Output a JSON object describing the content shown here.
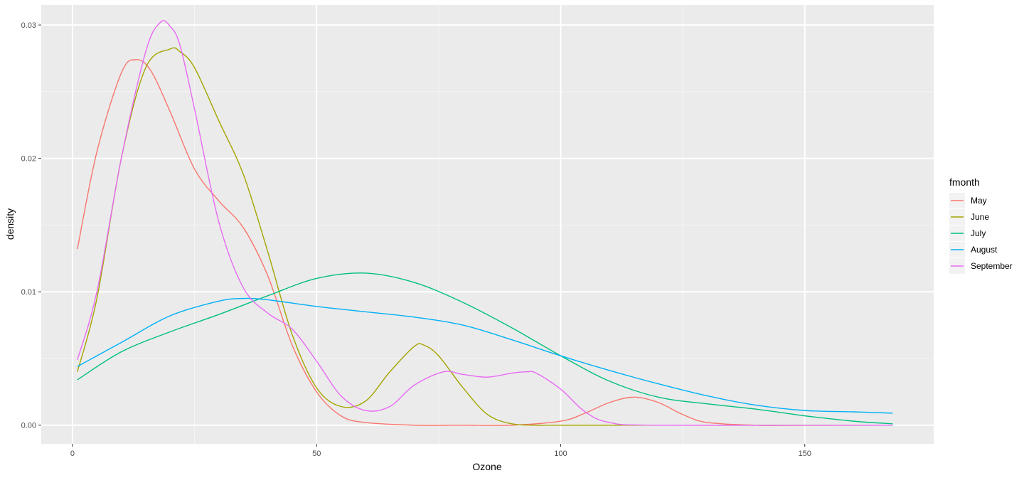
{
  "chart_data": {
    "type": "line",
    "title": "",
    "xlabel": "Ozone",
    "ylabel": "density",
    "xlim": [
      -6.4,
      176.4
    ],
    "ylim": [
      -0.0014,
      0.0315
    ],
    "x_ticks": [
      0,
      50,
      100,
      150
    ],
    "x_tick_labels": [
      "0",
      "50",
      "100",
      "150"
    ],
    "y_ticks": [
      0.0,
      0.01,
      0.02,
      0.03
    ],
    "y_tick_labels": [
      "0.00",
      "0.01",
      "0.02",
      "0.03"
    ],
    "grid": true,
    "legend": {
      "title": "fmonth",
      "position": "right"
    },
    "series": [
      {
        "name": "May",
        "color": "#F8766D",
        "x": [
          1,
          5,
          10,
          13,
          16,
          20,
          25,
          30,
          35,
          40,
          45,
          50,
          55,
          60,
          70,
          80,
          90,
          100,
          105,
          110,
          115,
          120,
          125,
          130,
          140,
          150,
          168
        ],
        "y": [
          0.0132,
          0.0205,
          0.0264,
          0.0274,
          0.0266,
          0.0235,
          0.0192,
          0.0168,
          0.0148,
          0.0112,
          0.006,
          0.0025,
          0.0007,
          0.0002,
          0.0,
          0.0,
          0.0,
          0.0003,
          0.0009,
          0.0017,
          0.0021,
          0.0017,
          0.0008,
          0.0002,
          0.0,
          0.0,
          0.0
        ]
      },
      {
        "name": "June",
        "color": "#A3A500",
        "x": [
          1,
          5,
          10,
          15,
          20,
          22,
          25,
          30,
          35,
          40,
          45,
          50,
          55,
          60,
          65,
          70,
          72,
          75,
          80,
          85,
          90,
          95,
          100,
          120,
          168
        ],
        "y": [
          0.004,
          0.0095,
          0.02,
          0.0268,
          0.0282,
          0.028,
          0.0268,
          0.0228,
          0.0188,
          0.013,
          0.0068,
          0.0028,
          0.0014,
          0.0018,
          0.004,
          0.0059,
          0.006,
          0.0052,
          0.0028,
          0.0008,
          0.0001,
          0.0,
          0.0,
          0.0,
          0.0
        ]
      },
      {
        "name": "July",
        "color": "#00BF7D",
        "x": [
          1,
          10,
          20,
          30,
          40,
          50,
          60,
          70,
          80,
          90,
          100,
          110,
          120,
          130,
          140,
          150,
          160,
          168
        ],
        "y": [
          0.0034,
          0.0055,
          0.007,
          0.0083,
          0.0097,
          0.011,
          0.0114,
          0.0107,
          0.0092,
          0.0073,
          0.0052,
          0.0033,
          0.0021,
          0.0016,
          0.0012,
          0.0007,
          0.0003,
          0.0001
        ]
      },
      {
        "name": "August",
        "color": "#00B0F6",
        "x": [
          1,
          10,
          20,
          30,
          35,
          40,
          50,
          60,
          70,
          80,
          90,
          100,
          110,
          120,
          130,
          140,
          150,
          160,
          168
        ],
        "y": [
          0.0044,
          0.0062,
          0.0082,
          0.0093,
          0.0095,
          0.0094,
          0.0089,
          0.0085,
          0.0081,
          0.0075,
          0.0064,
          0.0052,
          0.0041,
          0.0031,
          0.0022,
          0.0015,
          0.0011,
          0.001,
          0.0009
        ]
      },
      {
        "name": "September",
        "color": "#E76BF3",
        "x": [
          1,
          5,
          10,
          15,
          18,
          20,
          22,
          25,
          30,
          35,
          40,
          45,
          50,
          55,
          60,
          65,
          70,
          76,
          80,
          85,
          90,
          93,
          95,
          100,
          105,
          110,
          120,
          168
        ],
        "y": [
          0.0049,
          0.01,
          0.02,
          0.028,
          0.0302,
          0.0299,
          0.0285,
          0.0237,
          0.0152,
          0.0103,
          0.0084,
          0.0072,
          0.0048,
          0.0022,
          0.0011,
          0.0014,
          0.003,
          0.004,
          0.0038,
          0.0036,
          0.0039,
          0.004,
          0.0039,
          0.0027,
          0.001,
          0.0002,
          0.0,
          0.0
        ]
      }
    ]
  }
}
